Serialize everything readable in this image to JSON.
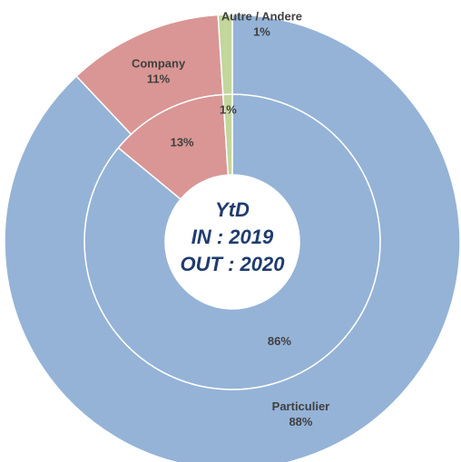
{
  "chart_data": {
    "type": "donut",
    "categories": [
      "Particulier",
      "Company",
      "Autre / Andere"
    ],
    "colors": [
      "#95b3d7",
      "#d99694",
      "#c3d69b"
    ],
    "series": [
      {
        "values": [
          86,
          13,
          1
        ],
        "value_labels": [
          "86%",
          "13%",
          "1%"
        ]
      },
      {
        "values": [
          88,
          11,
          1
        ],
        "value_labels": [
          "88%",
          "11%",
          "1%"
        ]
      }
    ],
    "center_text": [
      "YtD",
      "IN : 2019",
      "OUT : 2020"
    ]
  }
}
